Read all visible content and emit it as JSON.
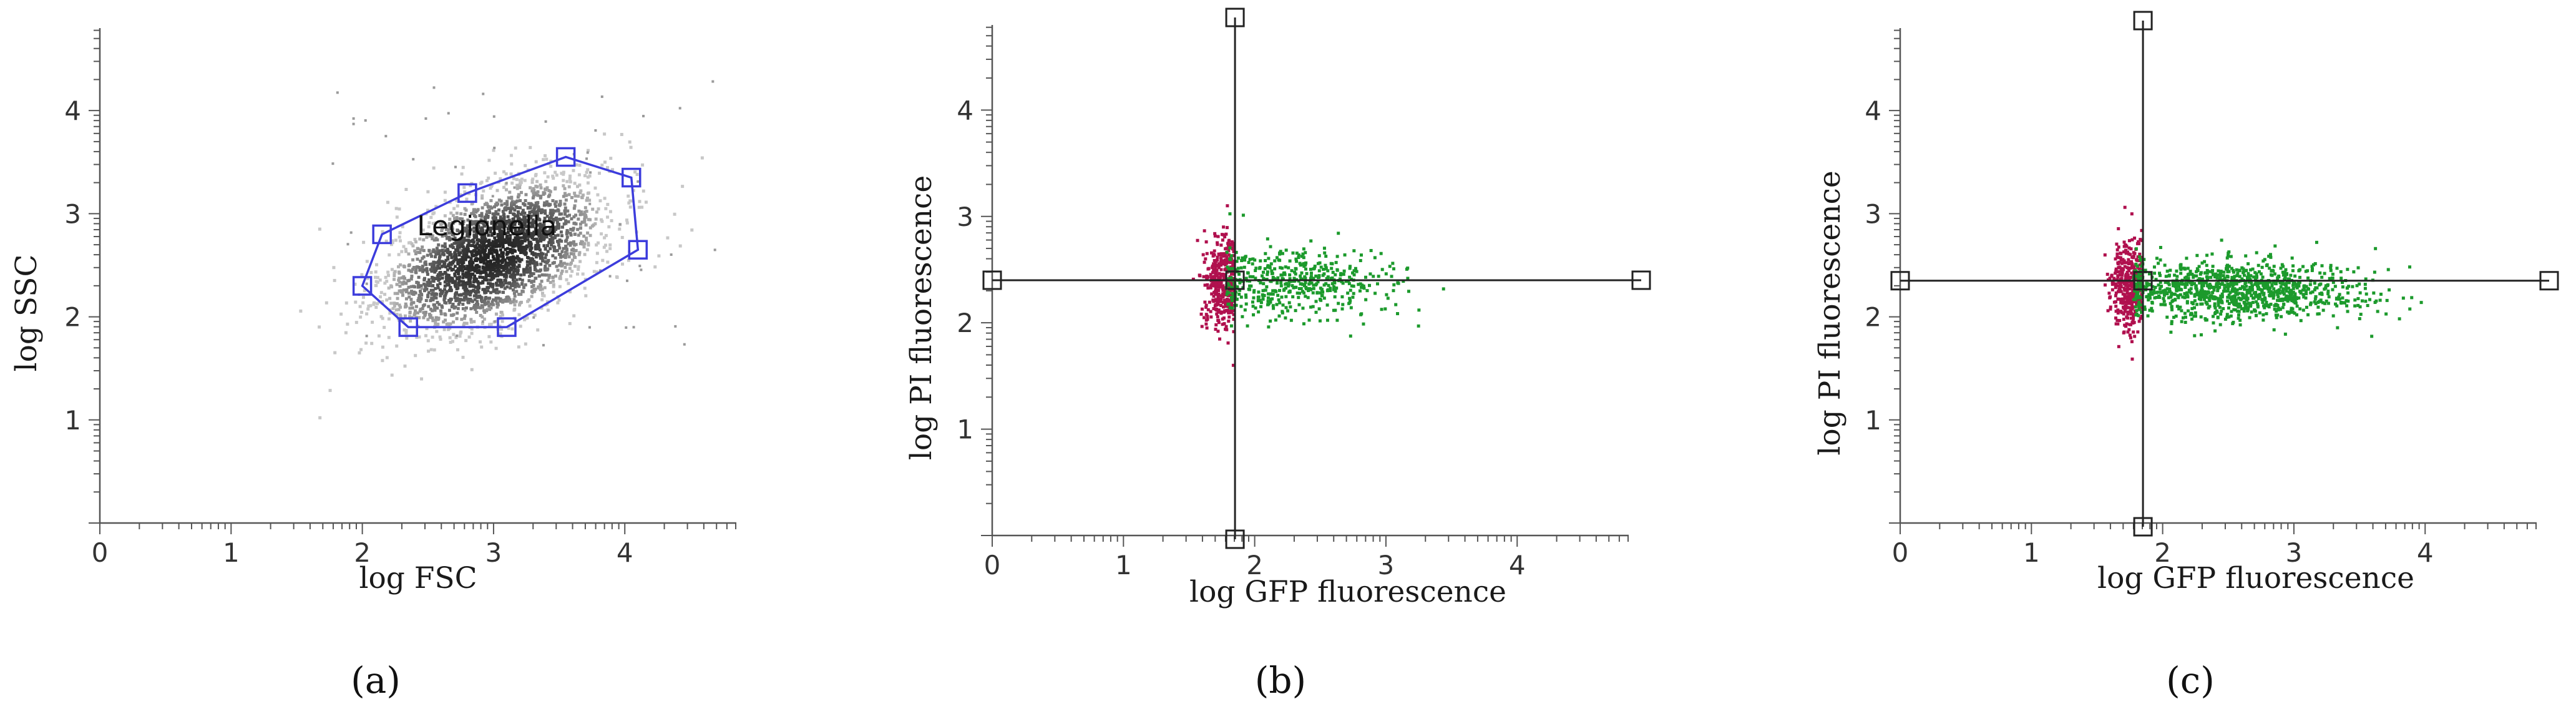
{
  "figure": {
    "panel_labels": [
      "(a)",
      "(b)",
      "(c)"
    ]
  },
  "chart_data": [
    {
      "type": "scatter",
      "title": "",
      "xlabel": "log FSC",
      "ylabel": "log SSC",
      "xlim": [
        0,
        4.85
      ],
      "ylim": [
        0,
        4.8
      ],
      "x_ticks": [
        0,
        1,
        2,
        3,
        4
      ],
      "y_ticks": [
        1,
        2,
        3,
        4
      ],
      "grid": false,
      "point_color": "#9a9a9a",
      "gate": {
        "name": "Legionella",
        "color": "#3c3cdc",
        "vertices": [
          [
            2.0,
            2.3
          ],
          [
            2.15,
            2.8
          ],
          [
            2.8,
            3.2
          ],
          [
            3.55,
            3.55
          ],
          [
            4.05,
            3.35
          ],
          [
            4.1,
            2.65
          ],
          [
            3.1,
            1.9
          ],
          [
            2.35,
            1.9
          ]
        ]
      },
      "population": {
        "center": [
          3.0,
          2.6
        ],
        "spread": [
          0.42,
          0.32
        ],
        "count": 2600
      }
    },
    {
      "type": "scatter",
      "title": "",
      "xlabel": "log GFP fluorescence",
      "ylabel": "log PI fluorescence",
      "xlim": [
        0,
        4.85
      ],
      "ylim": [
        0,
        4.8
      ],
      "x_ticks": [
        0,
        1,
        2,
        3,
        4
      ],
      "y_ticks": [
        1,
        2,
        3,
        4
      ],
      "grid": false,
      "quadrant": {
        "x": 1.85,
        "y": 2.4,
        "color": "#222222"
      },
      "series": [
        {
          "color": "#b0104e",
          "center": [
            1.75,
            2.38
          ],
          "spread": [
            0.07,
            0.22
          ],
          "count": 380
        },
        {
          "color": "#1c9a2c",
          "center": [
            2.3,
            2.38
          ],
          "spread": [
            0.38,
            0.17
          ],
          "count": 480
        }
      ]
    },
    {
      "type": "scatter",
      "title": "",
      "xlabel": "log GFP fluorescence",
      "ylabel": "log PI fluorescence",
      "xlim": [
        0,
        4.85
      ],
      "ylim": [
        0,
        4.8
      ],
      "x_ticks": [
        0,
        1,
        2,
        3,
        4
      ],
      "y_ticks": [
        1,
        2,
        3,
        4
      ],
      "grid": false,
      "quadrant": {
        "x": 1.85,
        "y": 2.35,
        "color": "#222222"
      },
      "series": [
        {
          "color": "#b0104e",
          "center": [
            1.75,
            2.3
          ],
          "spread": [
            0.07,
            0.22
          ],
          "count": 400
        },
        {
          "color": "#1c9a2c",
          "center": [
            2.55,
            2.25
          ],
          "spread": [
            0.48,
            0.15
          ],
          "count": 1100
        }
      ]
    }
  ]
}
